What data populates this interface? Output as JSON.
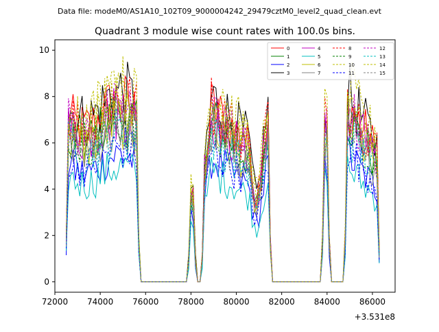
{
  "suptitle": "Data file: modeM0/AS1A10_102T09_9000004242_29479cztM0_level2_quad_clean.evt",
  "chart_data": {
    "type": "line",
    "title": "Quadrant 3 module wise count rates with 100.0s bins.",
    "xlabel": "",
    "ylabel": "",
    "x_offset_label": "+3.531e8",
    "xlim": [
      72000,
      87000
    ],
    "ylim": [
      -0.45,
      10.45
    ],
    "x_ticks": [
      72000,
      74000,
      76000,
      78000,
      80000,
      82000,
      84000,
      86000
    ],
    "x_tick_labels": [
      "72000",
      "74000",
      "76000",
      "78000",
      "80000",
      "82000",
      "84000",
      "86000"
    ],
    "y_ticks": [
      0,
      2,
      4,
      6,
      8,
      10
    ],
    "y_tick_labels": [
      "0",
      "2",
      "4",
      "6",
      "8",
      "10"
    ],
    "grid": false,
    "legend_position": "top-right",
    "legend_columns": 4,
    "segments": [
      {
        "start": 72500,
        "end": 75700
      },
      {
        "start": 77900,
        "end": 78200
      },
      {
        "start": 78500,
        "end": 81500
      },
      {
        "start": 83800,
        "end": 84100
      },
      {
        "start": 84800,
        "end": 86300
      }
    ],
    "gaps_value": 0,
    "series": [
      {
        "name": "0",
        "color": "#ff0000",
        "style": "solid",
        "level": 7.2
      },
      {
        "name": "1",
        "color": "#008000",
        "style": "solid",
        "level": 6.6
      },
      {
        "name": "2",
        "color": "#0000ff",
        "style": "solid",
        "level": 5.1
      },
      {
        "name": "3",
        "color": "#000000",
        "style": "solid",
        "level": 7.6
      },
      {
        "name": "4",
        "color": "#bf00bf",
        "style": "solid",
        "level": 6.8
      },
      {
        "name": "5",
        "color": "#00bfbf",
        "style": "solid",
        "level": 4.6
      },
      {
        "name": "6",
        "color": "#bfbf00",
        "style": "solid",
        "level": 6.4
      },
      {
        "name": "7",
        "color": "#808080",
        "style": "solid",
        "level": 6.2
      },
      {
        "name": "8",
        "color": "#ff0000",
        "style": "dashed",
        "level": 7.4
      },
      {
        "name": "9",
        "color": "#008000",
        "style": "dashed",
        "level": 6.5
      },
      {
        "name": "10",
        "color": "#bfbf00",
        "style": "dashed",
        "level": 7.3
      },
      {
        "name": "11",
        "color": "#0000ff",
        "style": "dashed",
        "level": 5.4
      },
      {
        "name": "12",
        "color": "#bf00bf",
        "style": "dashed",
        "level": 6.9
      },
      {
        "name": "13",
        "color": "#00bfbf",
        "style": "dashed",
        "level": 6.0
      },
      {
        "name": "14",
        "color": "#bfbf00",
        "style": "dashed",
        "level": 7.8
      },
      {
        "name": "15",
        "color": "#808080",
        "style": "dashed",
        "level": 6.3
      }
    ]
  }
}
